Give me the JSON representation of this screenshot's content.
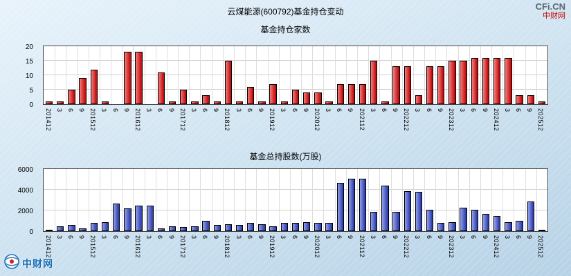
{
  "header": {
    "title": "云煤能源(600792)基金持仓变动"
  },
  "watermark": {
    "site": "CFi.CN",
    "name": "中财网"
  },
  "footer_logo": {
    "name": "中财网"
  },
  "colors": {
    "chart1_bar": "#ee1414",
    "chart2_bar": "#3d52d8",
    "bar_border": "#000000",
    "grid": "#cfcfcf",
    "plot_bg": "#ffffff"
  },
  "chart_data": [
    {
      "type": "bar",
      "title": "基金持仓家数",
      "xlabel": "",
      "ylabel": "",
      "ylim": [
        0,
        20
      ],
      "yticks": [
        0,
        5,
        10,
        15,
        20
      ],
      "grid": true,
      "legend_position": "none",
      "bar_color": "#ee1414",
      "categories": [
        "201412",
        "3",
        "6",
        "9",
        "201512",
        "3",
        "6",
        "9",
        "201612",
        "3",
        "6",
        "9",
        "201712",
        "3",
        "6",
        "9",
        "201812",
        "3",
        "6",
        "9",
        "201912",
        "3",
        "6",
        "9",
        "202012",
        "3",
        "6",
        "9",
        "202112",
        "3",
        "6",
        "9",
        "202212",
        "3",
        "6",
        "9",
        "202312",
        "3",
        "6",
        "9",
        "202412",
        "3",
        "6",
        "9",
        "202512"
      ],
      "values": [
        1,
        1,
        5,
        9,
        12,
        1,
        0,
        18,
        18,
        0,
        11,
        1,
        5,
        1,
        3,
        1,
        15,
        1,
        6,
        1,
        7,
        1,
        5,
        4,
        4,
        1,
        7,
        7,
        7,
        15,
        1,
        13,
        13,
        3,
        13,
        13,
        15,
        15,
        16,
        16,
        16,
        16,
        3,
        3,
        1
      ]
    },
    {
      "type": "bar",
      "title": "基金总持股数(万股)",
      "xlabel": "",
      "ylabel": "",
      "ylim": [
        0,
        6000
      ],
      "yticks": [
        0,
        2000,
        4000,
        6000
      ],
      "grid": true,
      "legend_position": "none",
      "bar_color": "#3d52d8",
      "categories": [
        "201412",
        "3",
        "6",
        "9",
        "201512",
        "3",
        "6",
        "9",
        "201612",
        "3",
        "6",
        "9",
        "201712",
        "3",
        "6",
        "9",
        "201812",
        "3",
        "6",
        "9",
        "201912",
        "3",
        "6",
        "9",
        "202012",
        "3",
        "6",
        "9",
        "202112",
        "3",
        "6",
        "9",
        "202212",
        "3",
        "6",
        "9",
        "202312",
        "3",
        "6",
        "9",
        "202412",
        "3",
        "6",
        "9",
        "202512"
      ],
      "values": [
        100,
        500,
        600,
        300,
        800,
        900,
        2700,
        2200,
        2500,
        2500,
        300,
        500,
        400,
        500,
        1000,
        600,
        700,
        600,
        800,
        700,
        500,
        800,
        800,
        900,
        800,
        800,
        4700,
        5100,
        5100,
        1900,
        4400,
        1900,
        3900,
        3800,
        2100,
        800,
        900,
        2300,
        2100,
        1700,
        1500,
        900,
        1000,
        2900,
        100
      ]
    }
  ]
}
